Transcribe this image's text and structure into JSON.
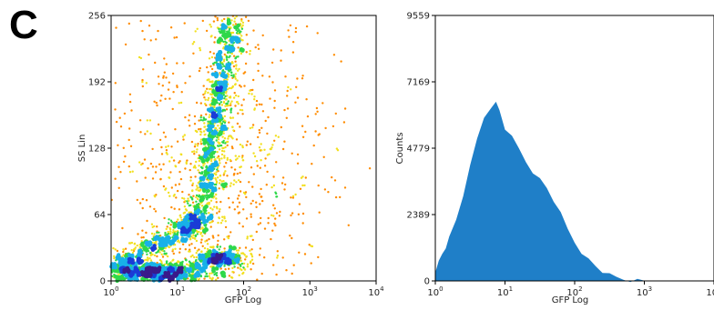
{
  "panel_label": "C",
  "chart_data": [
    {
      "type": "scatter",
      "subtype": "density-dot-plot",
      "title": "",
      "xlabel": "GFP Log",
      "ylabel": "SS Lin",
      "xscale": "log",
      "xlim": [
        1,
        10000
      ],
      "ylim": [
        0,
        256
      ],
      "xticks": [
        {
          "value": 1,
          "base": "10",
          "exp": "0"
        },
        {
          "value": 10,
          "base": "10",
          "exp": "1"
        },
        {
          "value": 100,
          "base": "10",
          "exp": "2"
        },
        {
          "value": 1000,
          "base": "10",
          "exp": "3"
        },
        {
          "value": 10000,
          "base": "10",
          "exp": "4"
        }
      ],
      "yticks": [
        {
          "value": 0,
          "label": "0"
        },
        {
          "value": 64,
          "label": "64"
        },
        {
          "value": 128,
          "label": "128"
        },
        {
          "value": 192,
          "label": "192"
        },
        {
          "value": 256,
          "label": "256"
        }
      ],
      "density_colors": [
        "#3a1a8a",
        "#1a3cd6",
        "#18b0e8",
        "#2ed84a",
        "#f2e020",
        "#ff8c00",
        "#ff2a00",
        "#e00000"
      ],
      "populations": [
        {
          "description": "dense core",
          "x_log_center": 0.7,
          "y_center": 8,
          "x_log_spread": 0.5,
          "y_spread": 6,
          "weight": 0.22
        },
        {
          "description": "diagonal tail",
          "x_log_start": 0.1,
          "y_start": 14,
          "x_log_end": 1.35,
          "y_end": 60,
          "weight": 0.14
        },
        {
          "description": "right low arm",
          "x_log_center": 1.65,
          "y_center": 22,
          "x_log_spread": 0.25,
          "y_spread": 5,
          "weight": 0.08
        },
        {
          "description": "vertical plume",
          "x_log_base": 1.3,
          "x_log_top": 1.85,
          "y_base": 40,
          "y_top": 256,
          "weight": 0.3
        },
        {
          "description": "outer halo",
          "x_log_center": 1.6,
          "y_center": 120,
          "x_log_spread": 0.8,
          "y_spread": 80,
          "weight": 0.26
        }
      ]
    },
    {
      "type": "area",
      "subtype": "histogram",
      "title": "",
      "xlabel": "GFP Log",
      "ylabel": "Counts",
      "xscale": "log",
      "xlim": [
        1,
        10000
      ],
      "ylim": [
        0,
        9559
      ],
      "xticks": [
        {
          "value": 1,
          "base": "10",
          "exp": "0"
        },
        {
          "value": 10,
          "base": "10",
          "exp": "1"
        },
        {
          "value": 100,
          "base": "10",
          "exp": "2"
        },
        {
          "value": 1000,
          "base": "10",
          "exp": "3"
        },
        {
          "value": 10000,
          "base": "10",
          "exp": "4"
        }
      ],
      "yticks": [
        {
          "value": 0,
          "label": "0"
        },
        {
          "value": 2389,
          "label": "2389"
        },
        {
          "value": 4779,
          "label": "4779"
        },
        {
          "value": 7169,
          "label": "7169"
        },
        {
          "value": 9559,
          "label": "9559"
        }
      ],
      "fill_color": "#1f7fc8",
      "x_log": [
        0.0,
        0.05,
        0.1,
        0.15,
        0.2,
        0.3,
        0.4,
        0.5,
        0.6,
        0.7,
        0.8,
        0.87,
        0.92,
        1.0,
        1.1,
        1.2,
        1.3,
        1.4,
        1.5,
        1.6,
        1.7,
        1.8,
        1.9,
        2.0,
        2.1,
        2.2,
        2.3,
        2.4,
        2.5,
        2.6,
        2.7,
        2.8,
        2.9,
        3.0,
        3.2,
        3.5,
        4.0
      ],
      "counts": [
        300,
        700,
        1000,
        1250,
        1550,
        2200,
        3100,
        4100,
        5100,
        5900,
        6300,
        6400,
        6150,
        5500,
        5150,
        4750,
        4300,
        3950,
        3650,
        3350,
        2900,
        2400,
        1850,
        1400,
        1050,
        760,
        530,
        340,
        200,
        120,
        70,
        40,
        22,
        10,
        4,
        0,
        0
      ]
    }
  ]
}
